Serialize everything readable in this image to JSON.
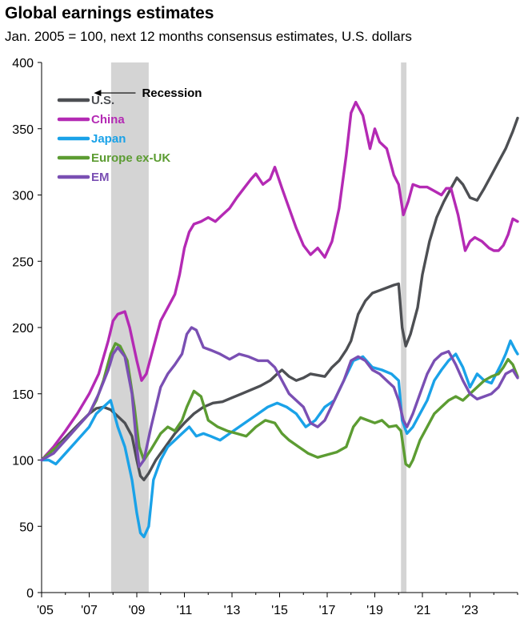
{
  "chart_data": {
    "type": "line",
    "title": "Global earnings estimates",
    "subtitle": "Jan. 2005 = 100, next 12 months consensus estimates, U.S. dollars",
    "xlabel": "",
    "ylabel": "",
    "ylim": [
      0,
      400
    ],
    "xlim": [
      2005.0,
      2025.0
    ],
    "yticks": [
      "0",
      "50",
      "100",
      "150",
      "200",
      "250",
      "300",
      "350",
      "400"
    ],
    "xticks": [
      {
        "label": "'05",
        "value": 2005
      },
      {
        "label": "'07",
        "value": 2007
      },
      {
        "label": "'09",
        "value": 2009
      },
      {
        "label": "'11",
        "value": 2011
      },
      {
        "label": "'13",
        "value": 2013
      },
      {
        "label": "'15",
        "value": 2015
      },
      {
        "label": "'17",
        "value": 2017
      },
      {
        "label": "'19",
        "value": 2019
      },
      {
        "label": "'21",
        "value": 2021
      },
      {
        "label": "'23",
        "value": 2023
      }
    ],
    "recessions": [
      {
        "start": 2007.92,
        "end": 2009.5
      },
      {
        "start": 2020.1,
        "end": 2020.33
      }
    ],
    "annotation": {
      "label": "Recession",
      "x": 2007.2,
      "y": 377
    },
    "legend": {
      "position": "top-left"
    },
    "series": [
      {
        "name": "U.S.",
        "color": "#4d4f53",
        "x": [
          2005.0,
          2005.5,
          2006.0,
          2006.5,
          2007.0,
          2007.3,
          2007.6,
          2007.9,
          2008.2,
          2008.5,
          2008.8,
          2009.0,
          2009.15,
          2009.3,
          2009.5,
          2009.8,
          2010.2,
          2010.6,
          2011.0,
          2011.4,
          2011.8,
          2012.2,
          2012.6,
          2013.0,
          2013.4,
          2013.8,
          2014.2,
          2014.6,
          2014.9,
          2015.1,
          2015.4,
          2015.7,
          2016.0,
          2016.3,
          2016.6,
          2016.9,
          2017.2,
          2017.5,
          2017.8,
          2018.0,
          2018.3,
          2018.6,
          2018.9,
          2019.2,
          2019.5,
          2019.8,
          2020.0,
          2020.15,
          2020.3,
          2020.5,
          2020.8,
          2021.0,
          2021.3,
          2021.6,
          2021.9,
          2022.2,
          2022.45,
          2022.7,
          2023.0,
          2023.3,
          2023.6,
          2023.9,
          2024.2,
          2024.5,
          2024.8,
          2025.0
        ],
        "values": [
          100,
          108,
          117,
          126,
          135,
          139,
          140,
          138,
          133,
          128,
          118,
          100,
          88,
          85,
          90,
          100,
          110,
          120,
          128,
          135,
          140,
          143,
          144,
          147,
          150,
          153,
          156,
          160,
          165,
          168,
          163,
          160,
          162,
          165,
          164,
          163,
          170,
          175,
          183,
          190,
          210,
          220,
          226,
          228,
          230,
          232,
          233,
          200,
          186,
          195,
          215,
          240,
          265,
          283,
          295,
          305,
          313,
          308,
          298,
          296,
          305,
          315,
          325,
          335,
          348,
          358
        ]
      },
      {
        "name": "China",
        "color": "#b42ab4",
        "x": [
          2005.0,
          2005.5,
          2006.0,
          2006.5,
          2007.0,
          2007.4,
          2007.8,
          2008.0,
          2008.2,
          2008.5,
          2008.7,
          2009.0,
          2009.2,
          2009.4,
          2009.7,
          2010.0,
          2010.3,
          2010.6,
          2010.8,
          2011.0,
          2011.2,
          2011.4,
          2011.7,
          2012.0,
          2012.3,
          2012.6,
          2012.9,
          2013.2,
          2013.5,
          2013.8,
          2014.0,
          2014.3,
          2014.6,
          2014.8,
          2015.1,
          2015.4,
          2015.7,
          2016.0,
          2016.3,
          2016.6,
          2016.9,
          2017.2,
          2017.5,
          2017.8,
          2018.0,
          2018.2,
          2018.5,
          2018.8,
          2019.0,
          2019.2,
          2019.5,
          2019.8,
          2020.0,
          2020.2,
          2020.4,
          2020.6,
          2020.9,
          2021.2,
          2021.5,
          2021.8,
          2022.0,
          2022.2,
          2022.5,
          2022.8,
          2023.0,
          2023.2,
          2023.5,
          2023.8,
          2024.0,
          2024.2,
          2024.4,
          2024.6,
          2024.8,
          2025.0
        ],
        "values": [
          100,
          110,
          122,
          135,
          150,
          165,
          190,
          205,
          210,
          212,
          200,
          175,
          160,
          165,
          185,
          205,
          215,
          225,
          240,
          260,
          272,
          278,
          280,
          283,
          280,
          285,
          290,
          298,
          305,
          312,
          316,
          308,
          312,
          321,
          305,
          290,
          275,
          262,
          255,
          260,
          253,
          265,
          290,
          330,
          362,
          370,
          360,
          335,
          350,
          340,
          335,
          315,
          308,
          285,
          295,
          308,
          306,
          306,
          303,
          300,
          305,
          305,
          285,
          258,
          265,
          268,
          265,
          260,
          258,
          258,
          262,
          270,
          282,
          280
        ]
      },
      {
        "name": "Japan",
        "color": "#1aa2e8",
        "x": [
          2005.0,
          2005.3,
          2005.6,
          2006.0,
          2006.5,
          2007.0,
          2007.3,
          2007.6,
          2007.9,
          2008.2,
          2008.5,
          2008.8,
          2009.0,
          2009.15,
          2009.3,
          2009.5,
          2009.7,
          2010.0,
          2010.3,
          2010.6,
          2010.9,
          2011.2,
          2011.5,
          2011.8,
          2012.1,
          2012.5,
          2012.9,
          2013.3,
          2013.7,
          2014.1,
          2014.5,
          2014.9,
          2015.3,
          2015.7,
          2016.1,
          2016.5,
          2016.9,
          2017.3,
          2017.7,
          2018.1,
          2018.5,
          2018.9,
          2019.3,
          2019.7,
          2020.0,
          2020.15,
          2020.35,
          2020.6,
          2020.9,
          2021.2,
          2021.5,
          2021.8,
          2022.1,
          2022.4,
          2022.7,
          2023.0,
          2023.3,
          2023.6,
          2023.9,
          2024.1,
          2024.3,
          2024.5,
          2024.7,
          2024.9,
          2025.0
        ],
        "values": [
          100,
          100,
          97,
          105,
          115,
          125,
          135,
          140,
          145,
          125,
          110,
          85,
          60,
          45,
          42,
          50,
          85,
          100,
          110,
          115,
          120,
          125,
          118,
          120,
          118,
          115,
          120,
          125,
          130,
          135,
          140,
          143,
          140,
          135,
          125,
          130,
          140,
          145,
          160,
          175,
          178,
          170,
          168,
          165,
          160,
          130,
          120,
          125,
          135,
          145,
          160,
          168,
          175,
          180,
          170,
          155,
          165,
          160,
          158,
          165,
          172,
          180,
          190,
          183,
          180
        ]
      },
      {
        "name": "Europe ex-UK",
        "color": "#5c9c32",
        "x": [
          2005.0,
          2005.5,
          2006.0,
          2006.5,
          2007.0,
          2007.3,
          2007.6,
          2007.9,
          2008.1,
          2008.3,
          2008.6,
          2008.9,
          2009.1,
          2009.3,
          2009.6,
          2010.0,
          2010.3,
          2010.6,
          2010.9,
          2011.1,
          2011.4,
          2011.7,
          2012.0,
          2012.4,
          2012.8,
          2013.2,
          2013.6,
          2014.0,
          2014.4,
          2014.8,
          2015.1,
          2015.4,
          2015.8,
          2016.2,
          2016.6,
          2017.0,
          2017.4,
          2017.8,
          2018.1,
          2018.4,
          2018.7,
          2019.0,
          2019.3,
          2019.6,
          2019.9,
          2020.1,
          2020.3,
          2020.45,
          2020.6,
          2020.9,
          2021.2,
          2021.5,
          2021.8,
          2022.1,
          2022.4,
          2022.7,
          2023.0,
          2023.3,
          2023.6,
          2023.9,
          2024.2,
          2024.4,
          2024.6,
          2024.8,
          2025.0
        ],
        "values": [
          100,
          108,
          115,
          125,
          135,
          145,
          160,
          180,
          188,
          186,
          175,
          140,
          110,
          100,
          108,
          120,
          125,
          122,
          130,
          140,
          152,
          148,
          130,
          125,
          122,
          120,
          118,
          125,
          130,
          128,
          120,
          115,
          110,
          105,
          102,
          104,
          106,
          110,
          125,
          132,
          130,
          128,
          130,
          125,
          126,
          122,
          97,
          95,
          100,
          115,
          125,
          135,
          140,
          145,
          148,
          145,
          150,
          155,
          160,
          163,
          165,
          170,
          176,
          172,
          163
        ]
      },
      {
        "name": "EM",
        "color": "#7a4fb3",
        "x": [
          2005.0,
          2005.5,
          2006.0,
          2006.5,
          2007.0,
          2007.4,
          2007.8,
          2008.0,
          2008.2,
          2008.5,
          2008.8,
          2009.0,
          2009.1,
          2009.3,
          2009.6,
          2010.0,
          2010.3,
          2010.6,
          2010.9,
          2011.1,
          2011.3,
          2011.5,
          2011.8,
          2012.1,
          2012.5,
          2012.9,
          2013.3,
          2013.7,
          2014.1,
          2014.5,
          2014.8,
          2015.1,
          2015.4,
          2015.7,
          2016.0,
          2016.3,
          2016.6,
          2016.9,
          2017.3,
          2017.7,
          2018.0,
          2018.3,
          2018.6,
          2018.9,
          2019.2,
          2019.5,
          2019.8,
          2020.0,
          2020.2,
          2020.35,
          2020.6,
          2020.9,
          2021.2,
          2021.5,
          2021.8,
          2022.1,
          2022.4,
          2022.7,
          2023.0,
          2023.3,
          2023.6,
          2023.9,
          2024.2,
          2024.5,
          2024.8,
          2025.0
        ],
        "values": [
          100,
          105,
          115,
          125,
          135,
          150,
          168,
          180,
          185,
          178,
          150,
          110,
          95,
          100,
          125,
          155,
          165,
          172,
          180,
          195,
          200,
          198,
          185,
          183,
          180,
          176,
          180,
          178,
          175,
          175,
          170,
          160,
          150,
          145,
          140,
          128,
          125,
          130,
          145,
          160,
          175,
          178,
          175,
          168,
          165,
          160,
          155,
          145,
          130,
          125,
          135,
          150,
          165,
          175,
          180,
          182,
          172,
          160,
          150,
          146,
          148,
          150,
          155,
          165,
          168,
          162
        ]
      }
    ]
  }
}
